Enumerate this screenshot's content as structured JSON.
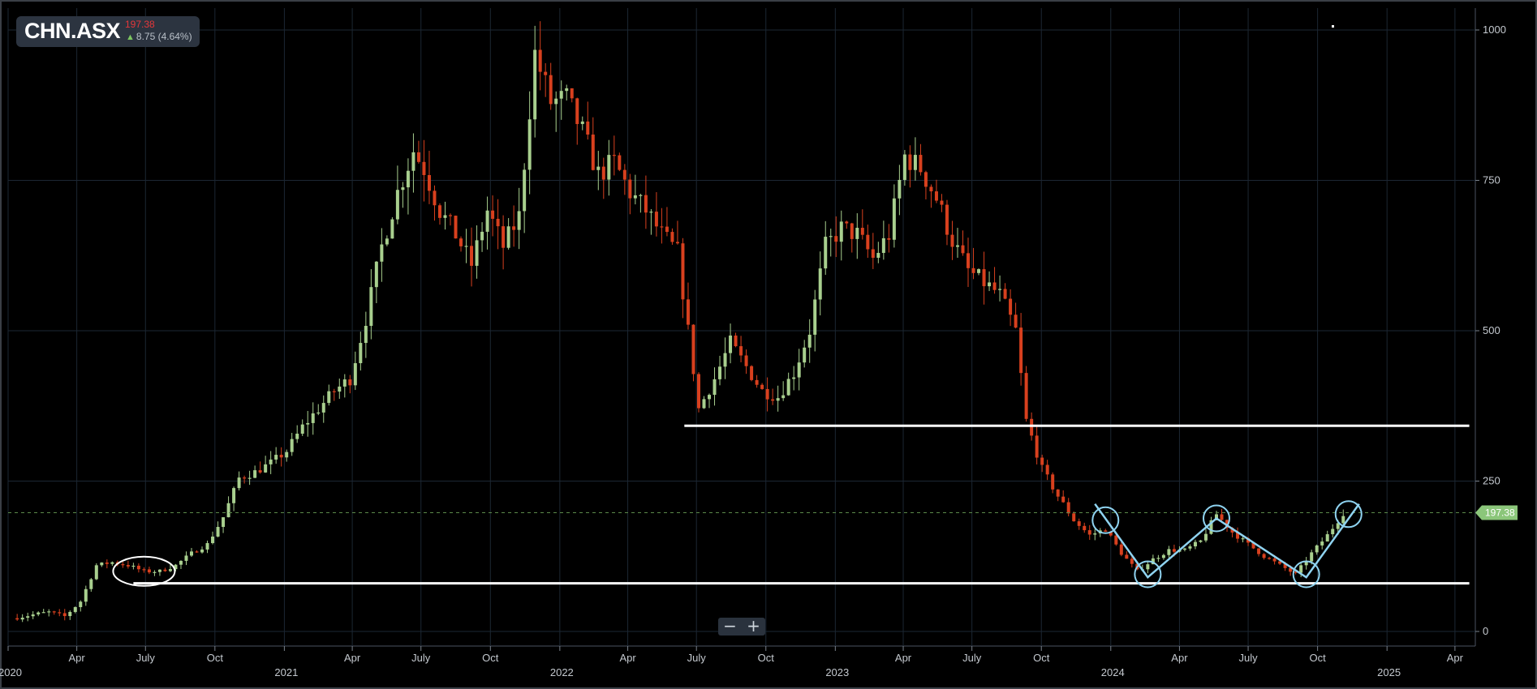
{
  "ticker": {
    "symbol": "CHN.ASX",
    "price": "197.38",
    "change": "8.75 (4.64%)",
    "direction_icon": "up-arrow-icon"
  },
  "zoom": {
    "minus_label": "−",
    "plus_label": "+"
  },
  "colors": {
    "background": "#000000",
    "grid": "#1c2733",
    "up": "#a8cf8e",
    "down": "#d8401e",
    "annotation_lines": "#ffffff",
    "annotation_pattern": "#8fd3f0",
    "price_tag": "#8bc67a"
  },
  "chart_data": {
    "type": "candlestick",
    "title": "",
    "ylim": [
      0,
      1000
    ],
    "y_ticks": [
      0,
      250,
      500,
      750,
      1000
    ],
    "x_range": [
      "2020-01-01",
      "2025-04-28"
    ],
    "x_tick_labels": [
      {
        "date": "2020-01-01",
        "label": "2020",
        "year": true
      },
      {
        "date": "2020-04-01",
        "label": "Apr"
      },
      {
        "date": "2020-07-01",
        "label": "July"
      },
      {
        "date": "2020-10-01",
        "label": "Oct"
      },
      {
        "date": "2021-01-01",
        "label": "2021",
        "year": true
      },
      {
        "date": "2021-04-01",
        "label": "Apr"
      },
      {
        "date": "2021-07-01",
        "label": "July"
      },
      {
        "date": "2021-10-01",
        "label": "Oct"
      },
      {
        "date": "2022-01-01",
        "label": "2022",
        "year": true
      },
      {
        "date": "2022-04-01",
        "label": "Apr"
      },
      {
        "date": "2022-07-01",
        "label": "July"
      },
      {
        "date": "2022-10-01",
        "label": "Oct"
      },
      {
        "date": "2023-01-01",
        "label": "2023",
        "year": true
      },
      {
        "date": "2023-04-01",
        "label": "Apr"
      },
      {
        "date": "2023-07-01",
        "label": "July"
      },
      {
        "date": "2023-10-01",
        "label": "Oct"
      },
      {
        "date": "2024-01-01",
        "label": "2024",
        "year": true
      },
      {
        "date": "2024-04-01",
        "label": "Apr"
      },
      {
        "date": "2024-07-01",
        "label": "July"
      },
      {
        "date": "2024-10-01",
        "label": "Oct"
      },
      {
        "date": "2025-01-01",
        "label": "2025",
        "year": true
      },
      {
        "date": "2025-04-01",
        "label": "Apr"
      }
    ],
    "last_price": 197.38,
    "last_price_label": "197.38",
    "price_path": [
      [
        "2020-01-06",
        22
      ],
      [
        "2020-02-03",
        28
      ],
      [
        "2020-02-24",
        32
      ],
      [
        "2020-03-16",
        25
      ],
      [
        "2020-04-06",
        50
      ],
      [
        "2020-04-27",
        110
      ],
      [
        "2020-05-18",
        115
      ],
      [
        "2020-06-08",
        110
      ],
      [
        "2020-06-29",
        100
      ],
      [
        "2020-07-20",
        100
      ],
      [
        "2020-08-10",
        110
      ],
      [
        "2020-08-31",
        130
      ],
      [
        "2020-09-21",
        145
      ],
      [
        "2020-10-12",
        190
      ],
      [
        "2020-11-02",
        255
      ],
      [
        "2020-11-23",
        265
      ],
      [
        "2020-12-14",
        280
      ],
      [
        "2021-01-04",
        300
      ],
      [
        "2021-01-25",
        340
      ],
      [
        "2021-02-15",
        370
      ],
      [
        "2021-03-08",
        400
      ],
      [
        "2021-03-29",
        420
      ],
      [
        "2021-04-19",
        520
      ],
      [
        "2021-05-10",
        640
      ],
      [
        "2021-05-31",
        730
      ],
      [
        "2021-06-21",
        800
      ],
      [
        "2021-07-05",
        770
      ],
      [
        "2021-07-26",
        700
      ],
      [
        "2021-08-16",
        660
      ],
      [
        "2021-09-06",
        610
      ],
      [
        "2021-09-27",
        700
      ],
      [
        "2021-10-18",
        640
      ],
      [
        "2021-11-08",
        690
      ],
      [
        "2021-11-29",
        960
      ],
      [
        "2021-12-20",
        880
      ],
      [
        "2022-01-10",
        885
      ],
      [
        "2022-01-31",
        830
      ],
      [
        "2022-02-21",
        760
      ],
      [
        "2022-03-14",
        780
      ],
      [
        "2022-04-04",
        730
      ],
      [
        "2022-04-25",
        700
      ],
      [
        "2022-05-16",
        660
      ],
      [
        "2022-06-06",
        630
      ],
      [
        "2022-06-20",
        500
      ],
      [
        "2022-07-04",
        370
      ],
      [
        "2022-07-25",
        420
      ],
      [
        "2022-08-15",
        480
      ],
      [
        "2022-09-05",
        440
      ],
      [
        "2022-09-26",
        400
      ],
      [
        "2022-10-17",
        390
      ],
      [
        "2022-11-07",
        430
      ],
      [
        "2022-11-28",
        500
      ],
      [
        "2022-12-19",
        640
      ],
      [
        "2023-01-09",
        670
      ],
      [
        "2023-01-30",
        660
      ],
      [
        "2023-02-20",
        620
      ],
      [
        "2023-03-13",
        660
      ],
      [
        "2023-04-03",
        790
      ],
      [
        "2023-04-24",
        770
      ],
      [
        "2023-05-15",
        720
      ],
      [
        "2023-06-05",
        650
      ],
      [
        "2023-06-26",
        600
      ],
      [
        "2023-07-17",
        580
      ],
      [
        "2023-08-07",
        560
      ],
      [
        "2023-08-28",
        500
      ],
      [
        "2023-09-11",
        350
      ],
      [
        "2023-10-02",
        270
      ],
      [
        "2023-10-23",
        225
      ],
      [
        "2023-11-13",
        185
      ],
      [
        "2023-12-04",
        160
      ],
      [
        "2023-12-25",
        170
      ],
      [
        "2024-01-15",
        130
      ],
      [
        "2024-02-05",
        100
      ],
      [
        "2024-02-26",
        120
      ],
      [
        "2024-03-18",
        135
      ],
      [
        "2024-04-08",
        135
      ],
      [
        "2024-04-29",
        150
      ],
      [
        "2024-05-20",
        195
      ],
      [
        "2024-06-10",
        165
      ],
      [
        "2024-07-01",
        145
      ],
      [
        "2024-07-22",
        125
      ],
      [
        "2024-08-12",
        110
      ],
      [
        "2024-09-02",
        95
      ],
      [
        "2024-09-23",
        130
      ],
      [
        "2024-10-14",
        160
      ],
      [
        "2024-11-04",
        197
      ]
    ],
    "annotations": {
      "horizontal_lines": [
        {
          "value": 342,
          "from": "2022-06-15",
          "to": "2025-04-20"
        },
        {
          "value": 80,
          "from": "2020-06-15",
          "to": "2025-04-20"
        }
      ],
      "circled_points": [
        {
          "date": "2020-06-29",
          "value": 100,
          "color": "white"
        },
        {
          "date": "2023-12-25",
          "value": 185,
          "color": "blue"
        },
        {
          "date": "2024-02-19",
          "value": 95,
          "color": "blue"
        },
        {
          "date": "2024-05-20",
          "value": 188,
          "color": "blue"
        },
        {
          "date": "2024-09-16",
          "value": 95,
          "color": "blue"
        },
        {
          "date": "2024-11-11",
          "value": 195,
          "color": "blue"
        }
      ],
      "pattern_path": [
        [
          "2023-12-11",
          212
        ],
        [
          "2024-02-19",
          90
        ],
        [
          "2024-05-20",
          188
        ],
        [
          "2024-09-16",
          90
        ],
        [
          "2024-11-25",
          212
        ]
      ]
    }
  }
}
